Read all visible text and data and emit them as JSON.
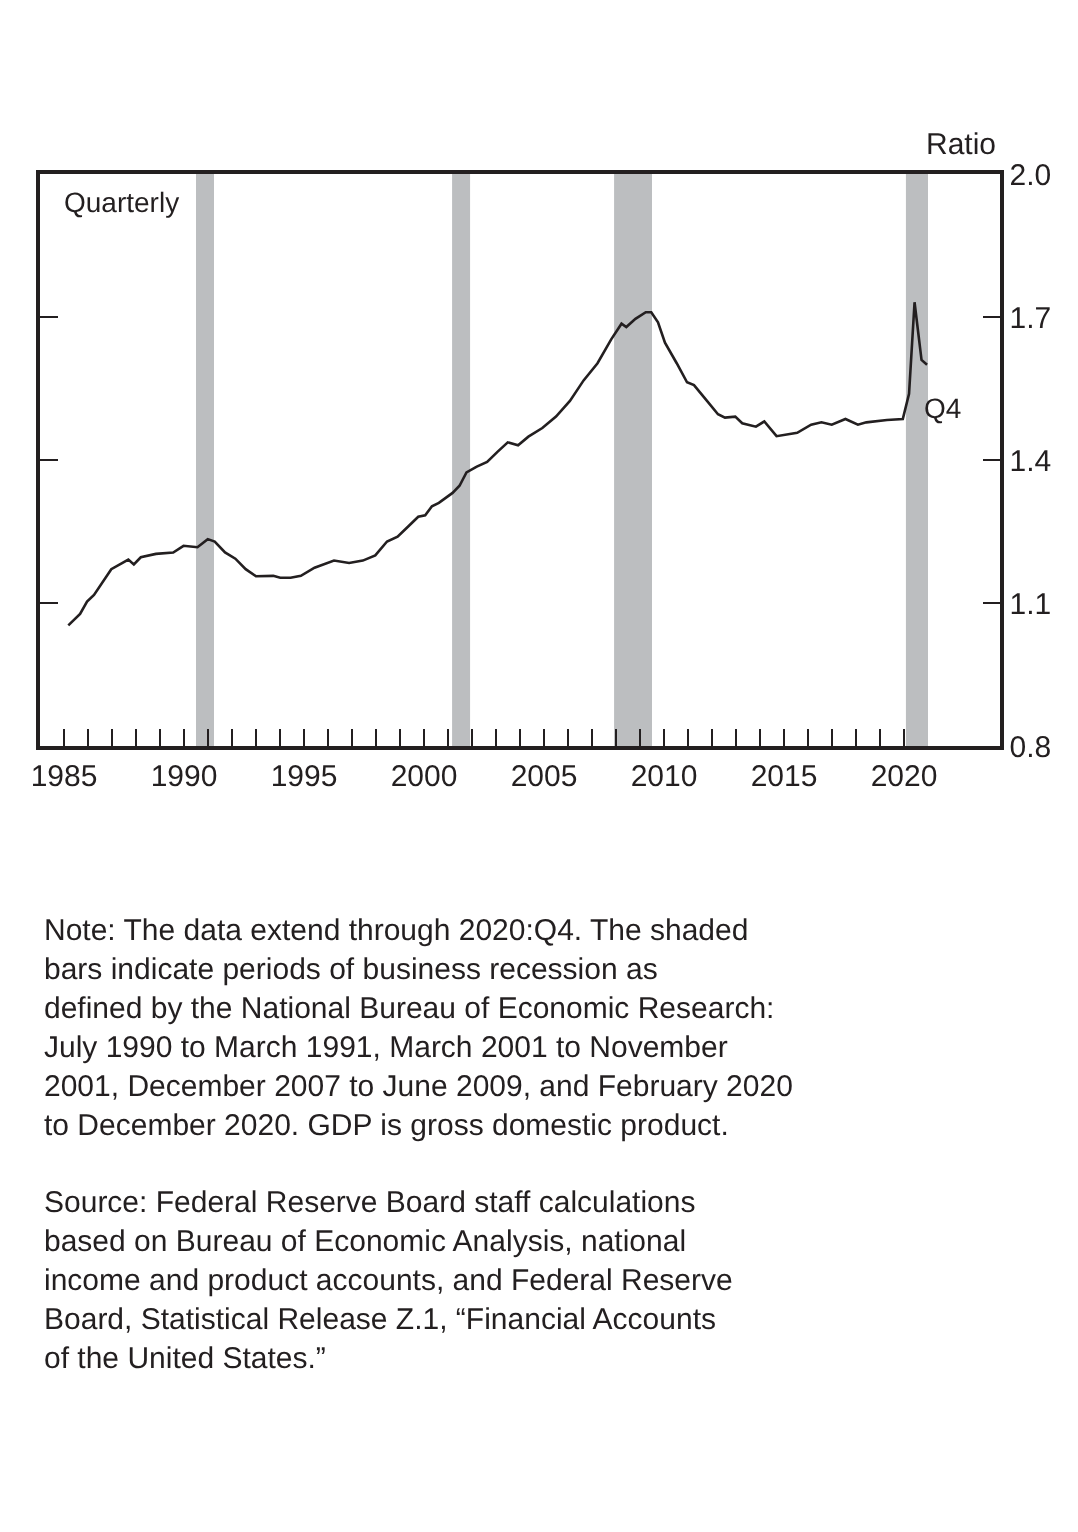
{
  "chart_data": {
    "type": "line",
    "ylabel": "Ratio",
    "x": [
      1985.18,
      1985.67,
      1985.96,
      1986.25,
      1986.97,
      1987.68,
      1987.91,
      1988.2,
      1988.83,
      1989.55,
      1989.98,
      1990.56,
      1990.99,
      1991.28,
      1991.71,
      1992.14,
      1992.57,
      1993.0,
      1993.72,
      1994.01,
      1994.44,
      1994.87,
      1995.44,
      1996.25,
      1996.88,
      1997.45,
      1997.97,
      1998.46,
      1998.9,
      1999.33,
      1999.76,
      2000.05,
      2000.33,
      2000.62,
      2001.19,
      2001.48,
      2001.77,
      2002.2,
      2002.63,
      2003.06,
      2003.49,
      2003.92,
      2004.35,
      2004.93,
      2005.5,
      2006.08,
      2006.65,
      2007.23,
      2007.8,
      2008.23,
      2008.43,
      2008.81,
      2009.24,
      2009.47,
      2009.75,
      2010.04,
      2010.53,
      2010.96,
      2011.25,
      2011.68,
      2012.25,
      2012.54,
      2012.97,
      2013.26,
      2013.83,
      2014.18,
      2014.69,
      2015.55,
      2016.13,
      2016.56,
      2016.99,
      2017.56,
      2018.08,
      2018.43,
      2019.29,
      2019.95,
      2020.21,
      2020.44,
      2020.73,
      2020.96
    ],
    "series": [
      {
        "color": "#231f20",
        "values": [
          1.053,
          1.077,
          1.103,
          1.117,
          1.171,
          1.191,
          1.181,
          1.196,
          1.203,
          1.206,
          1.22,
          1.217,
          1.234,
          1.229,
          1.206,
          1.193,
          1.171,
          1.156,
          1.157,
          1.153,
          1.153,
          1.157,
          1.174,
          1.189,
          1.184,
          1.189,
          1.2,
          1.229,
          1.239,
          1.26,
          1.281,
          1.284,
          1.303,
          1.31,
          1.331,
          1.346,
          1.374,
          1.386,
          1.396,
          1.417,
          1.437,
          1.431,
          1.449,
          1.467,
          1.491,
          1.524,
          1.567,
          1.603,
          1.653,
          1.686,
          1.679,
          1.696,
          1.71,
          1.71,
          1.689,
          1.646,
          1.603,
          1.563,
          1.557,
          1.531,
          1.496,
          1.489,
          1.491,
          1.477,
          1.47,
          1.481,
          1.45,
          1.457,
          1.474,
          1.479,
          1.474,
          1.486,
          1.474,
          1.479,
          1.484,
          1.486,
          1.539,
          1.731,
          1.61,
          1.6
        ]
      }
    ],
    "xlim": [
      1984,
      2024
    ],
    "xticks": [
      {
        "value": 1985,
        "label": "1985"
      },
      {
        "value": 1986,
        "label": null
      },
      {
        "value": 1987,
        "label": null
      },
      {
        "value": 1988,
        "label": null
      },
      {
        "value": 1989,
        "label": null
      },
      {
        "value": 1990,
        "label": "1990"
      },
      {
        "value": 1991,
        "label": null
      },
      {
        "value": 1992,
        "label": null
      },
      {
        "value": 1993,
        "label": null
      },
      {
        "value": 1994,
        "label": null
      },
      {
        "value": 1995,
        "label": "1995"
      },
      {
        "value": 1996,
        "label": null
      },
      {
        "value": 1997,
        "label": null
      },
      {
        "value": 1998,
        "label": null
      },
      {
        "value": 1999,
        "label": null
      },
      {
        "value": 2000,
        "label": "2000"
      },
      {
        "value": 2001,
        "label": null
      },
      {
        "value": 2002,
        "label": null
      },
      {
        "value": 2003,
        "label": null
      },
      {
        "value": 2004,
        "label": null
      },
      {
        "value": 2005,
        "label": "2005"
      },
      {
        "value": 2006,
        "label": null
      },
      {
        "value": 2007,
        "label": null
      },
      {
        "value": 2008,
        "label": null
      },
      {
        "value": 2009,
        "label": null
      },
      {
        "value": 2010,
        "label": "2010"
      },
      {
        "value": 2011,
        "label": null
      },
      {
        "value": 2012,
        "label": null
      },
      {
        "value": 2013,
        "label": null
      },
      {
        "value": 2014,
        "label": null
      },
      {
        "value": 2015,
        "label": "2015"
      },
      {
        "value": 2016,
        "label": null
      },
      {
        "value": 2017,
        "label": null
      },
      {
        "value": 2018,
        "label": null
      },
      {
        "value": 2019,
        "label": null
      },
      {
        "value": 2020,
        "label": "2020"
      }
    ],
    "ylim": [
      0.8,
      2.0
    ],
    "yticks": [
      {
        "value": 0.8,
        "label": "0.8"
      },
      {
        "value": 1.1,
        "label": "1.1"
      },
      {
        "value": 1.4,
        "label": "1.4"
      },
      {
        "value": 1.7,
        "label": "1.7"
      },
      {
        "value": 2.0,
        "label": "2.0"
      }
    ],
    "grid": false,
    "marker": "none",
    "line_style": "solid",
    "bands": [
      {
        "axis": "x",
        "from": 1990.5,
        "to": 1991.25,
        "color": "#bcbec0"
      },
      {
        "axis": "x",
        "from": 2001.17,
        "to": 2001.92,
        "color": "#bcbec0"
      },
      {
        "axis": "x",
        "from": 2007.92,
        "to": 2009.5,
        "color": "#bcbec0"
      },
      {
        "axis": "x",
        "from": 2020.08,
        "to": 2021.0,
        "color": "#bcbec0"
      }
    ],
    "annotations": [
      "Quarterly",
      {
        "text": "Q4",
        "x": 2020.96,
        "y": 1.6
      },
      "Note: The data extend through 2020:Q4. The shaded bars indicate periods of business recession as defined by the National Bureau of Economic Research: July 1990 to March 1991, March 2001 to November 2001, December 2007 to June 2009, and February 2020 to December 2020. GDP is gross domestic product.",
      "Source: Federal Reserve Board staff calculations based on Bureau of Economic Analysis, national income and product accounts, and Federal Reserve Board, Statistical Release Z.1, “Financial Accounts of the United States.”"
    ]
  }
}
